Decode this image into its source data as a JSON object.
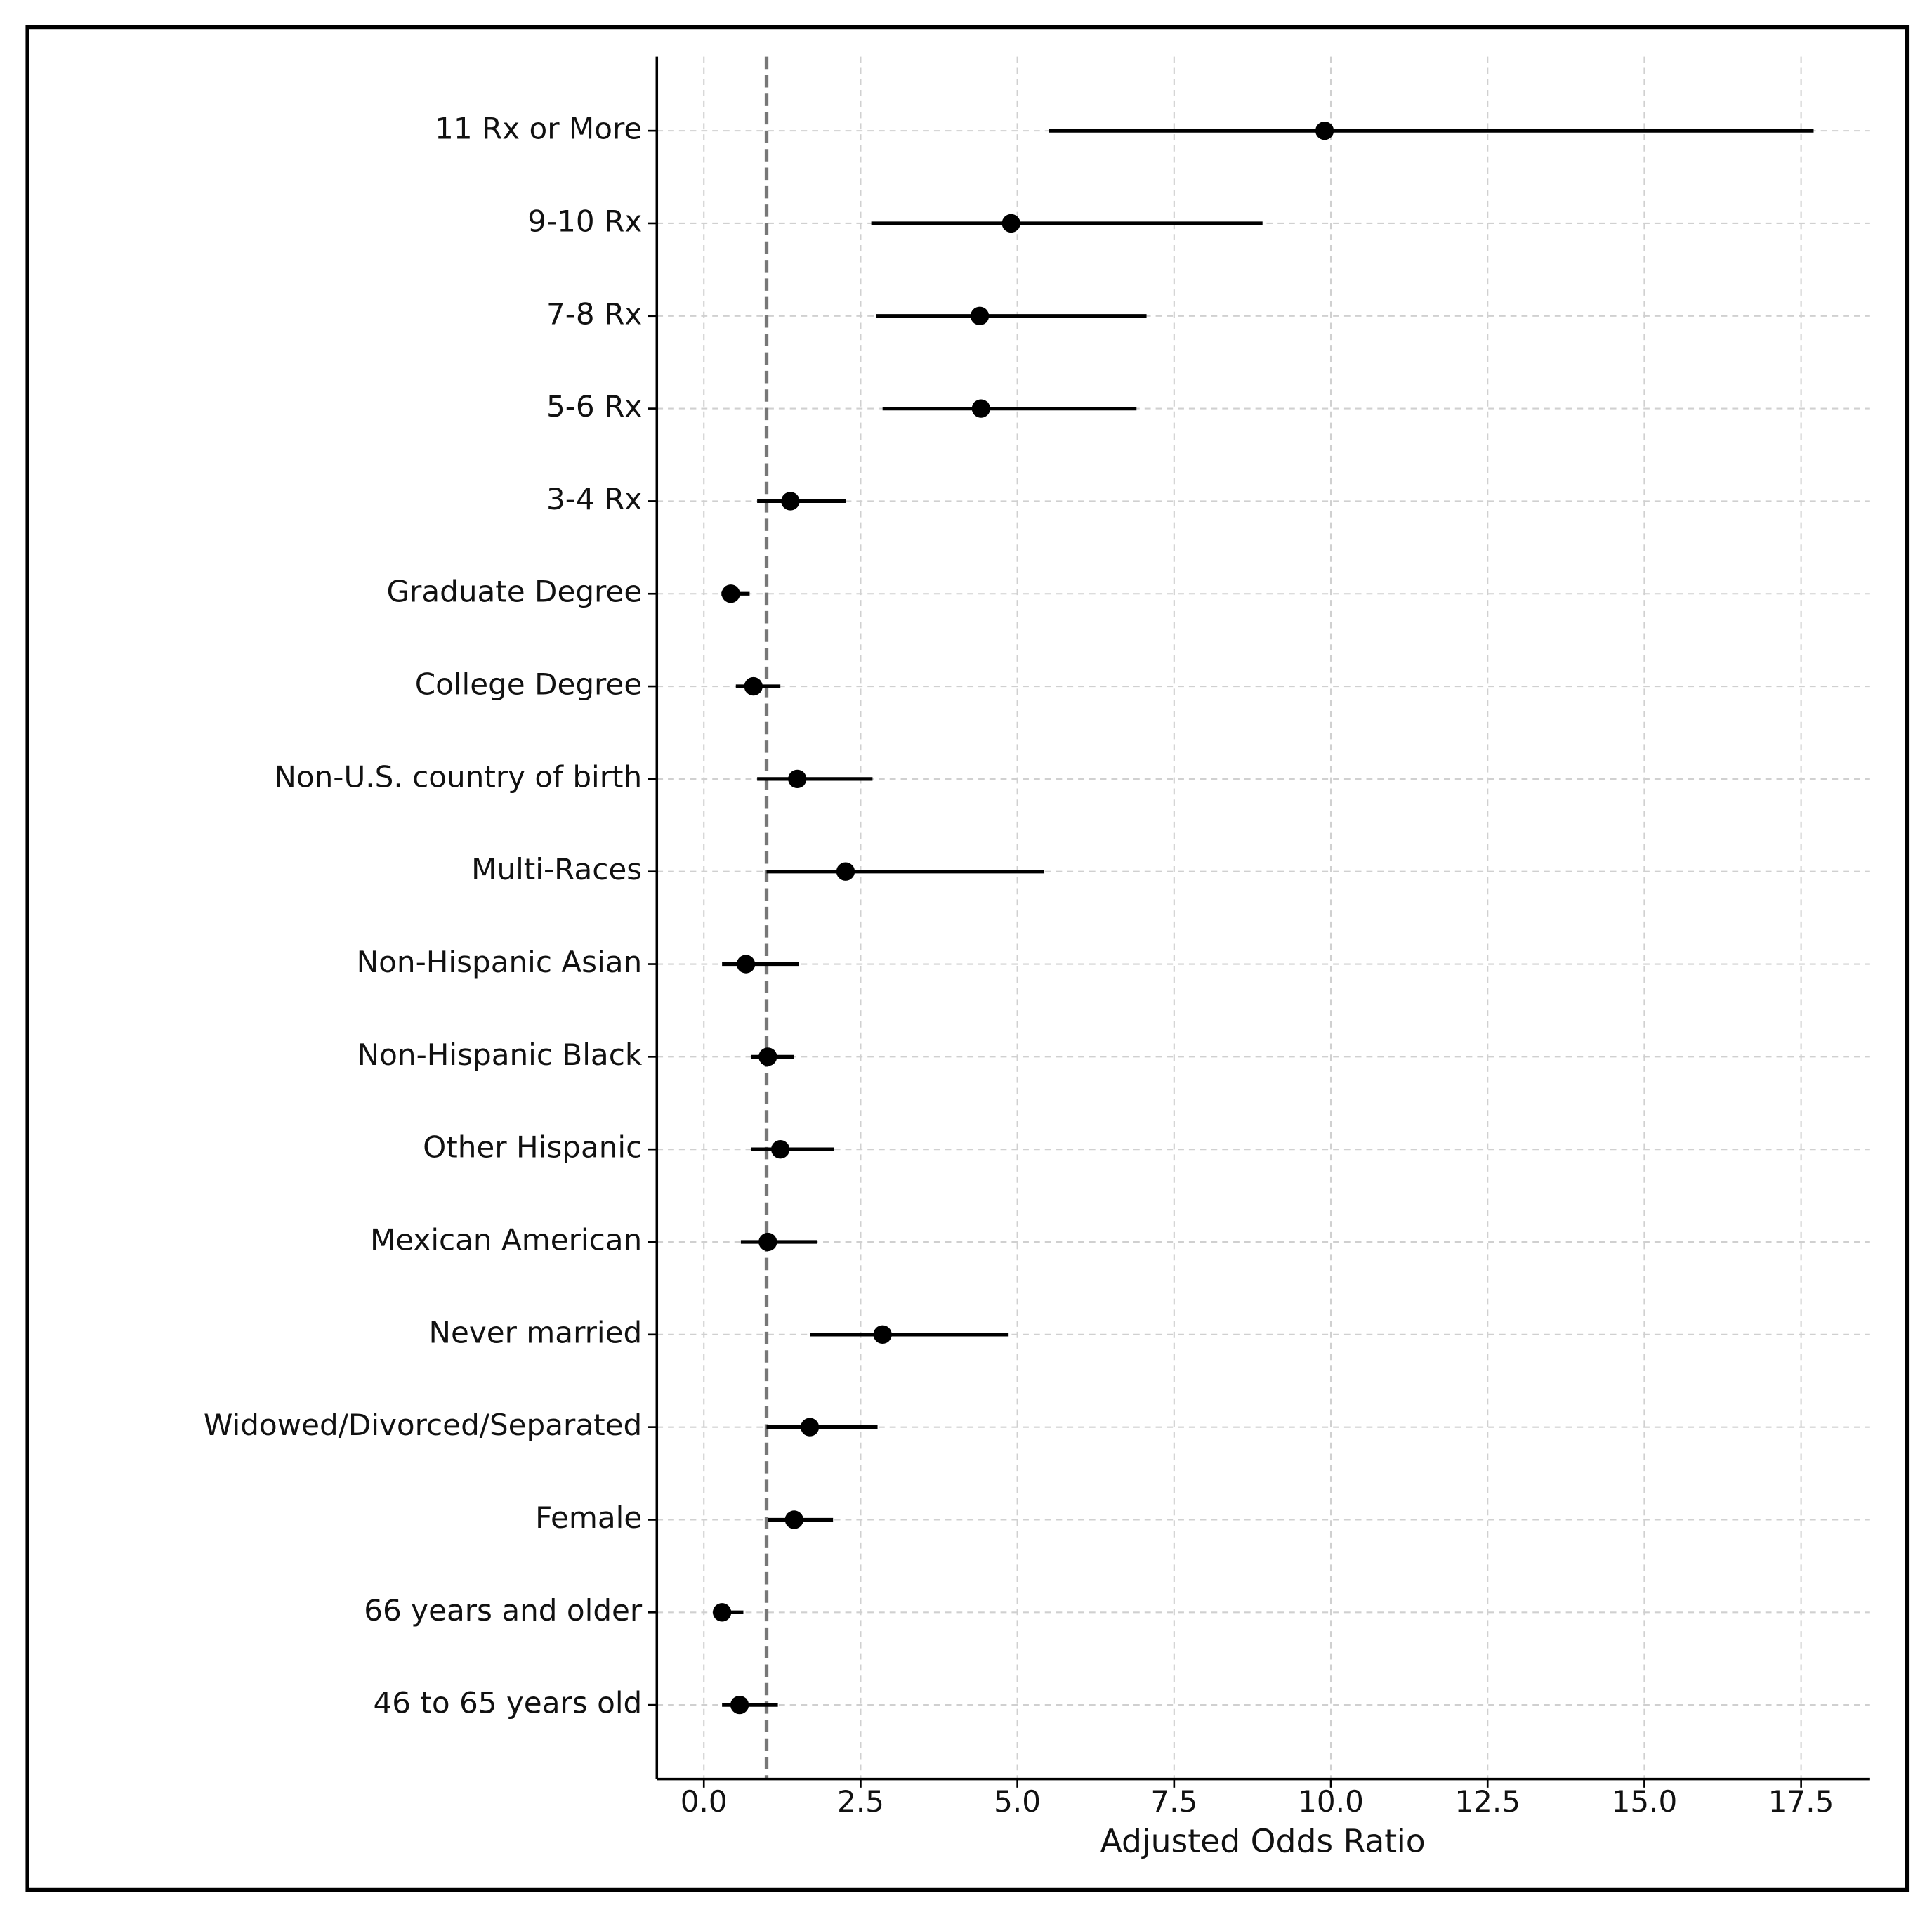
{
  "chart_data": {
    "type": "forest",
    "x_label": "Adjusted Odds Ratio",
    "categories": [
      "11 Rx or More",
      "9-10 Rx",
      "7-8 Rx",
      "5-6 Rx",
      "3-4 Rx",
      "Graduate Degree",
      "College Degree",
      "Non-U.S. country of birth",
      "Multi-Races",
      "Non-Hispanic Asian",
      "Non-Hispanic Black",
      "Other Hispanic",
      "Mexican American",
      "Never married",
      "Widowed/Divorced/Separated",
      "Female",
      "66 years and older",
      "46 to 65 years old"
    ],
    "values": [
      9.9,
      4.9,
      4.4,
      4.42,
      1.38,
      0.43,
      0.79,
      1.49,
      2.26,
      0.67,
      1.02,
      1.22,
      1.02,
      2.85,
      1.69,
      1.44,
      0.29,
      0.57
    ],
    "ci_low": [
      5.5,
      2.67,
      2.75,
      2.85,
      0.85,
      0.28,
      0.51,
      0.85,
      1.0,
      0.29,
      0.75,
      0.75,
      0.59,
      1.69,
      1.0,
      1.02,
      0.16,
      0.29
    ],
    "ci_high": [
      17.7,
      8.91,
      7.06,
      6.9,
      2.26,
      0.73,
      1.22,
      2.69,
      5.43,
      1.51,
      1.44,
      2.08,
      1.81,
      4.86,
      2.77,
      2.06,
      0.63,
      1.18
    ],
    "color": "#000000",
    "reference_line": 1,
    "xlim": [
      -0.75,
      18.6
    ],
    "xticks": [
      {
        "value": 0,
        "label": "0.0"
      },
      2.5,
      {
        "value": 5,
        "label": "5.0"
      },
      7.5,
      {
        "value": 10,
        "label": "10.0"
      },
      12.5,
      {
        "value": 15,
        "label": "15.0"
      },
      17.5
    ],
    "grid": true
  }
}
